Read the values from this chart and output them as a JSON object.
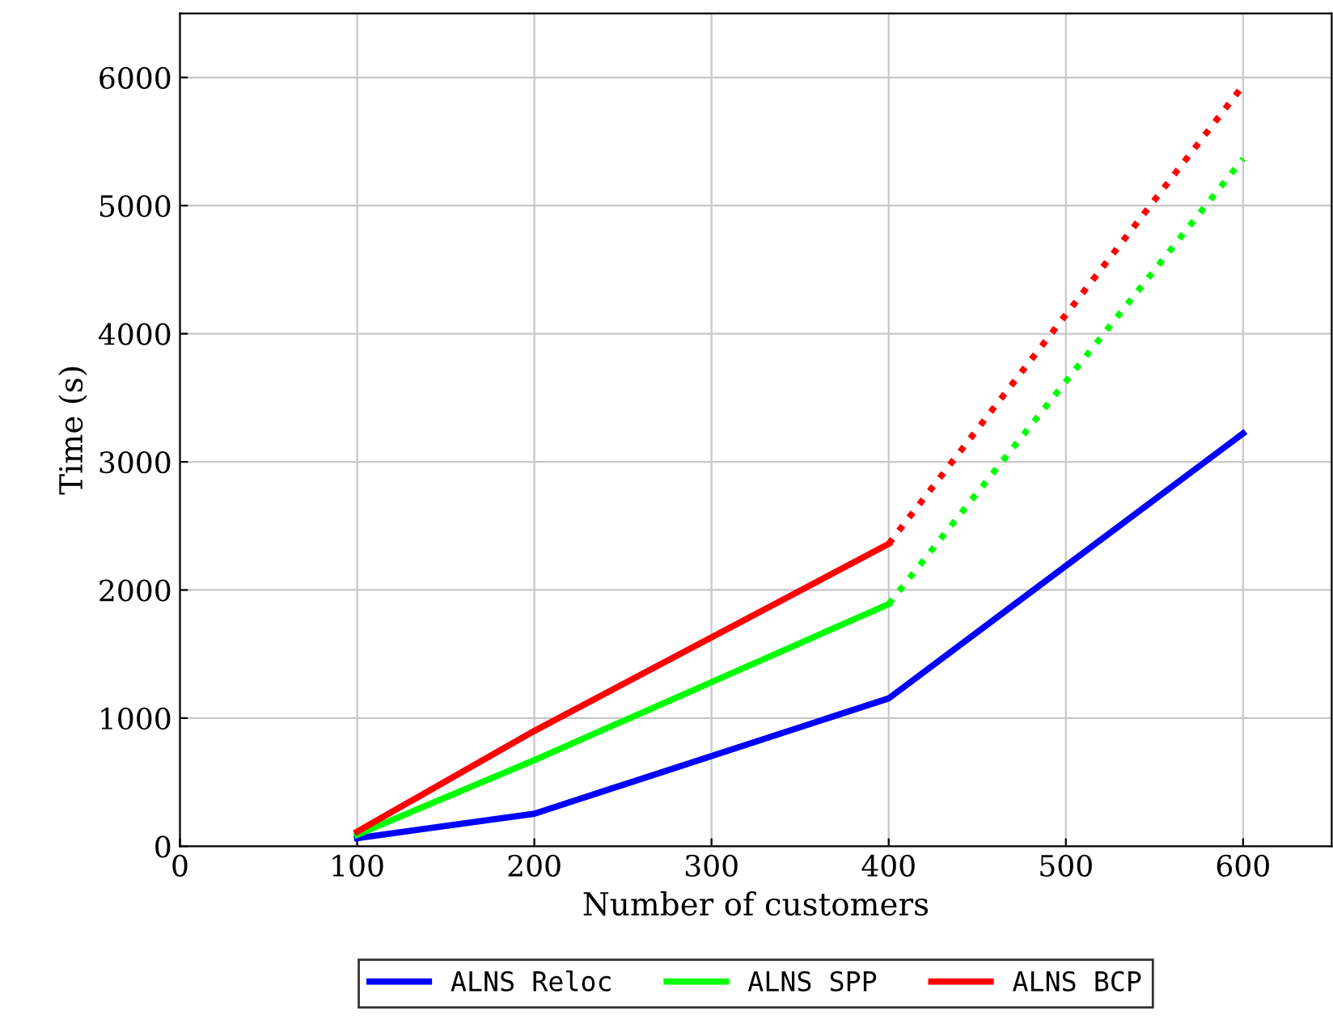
{
  "chart_data": {
    "type": "line",
    "xlabel": "Number of customers",
    "ylabel": "Time (s)",
    "xlim": [
      0,
      650
    ],
    "ylim": [
      0,
      6500
    ],
    "xticks": [
      0,
      100,
      200,
      300,
      400,
      500,
      600
    ],
    "yticks": [
      0,
      1000,
      2000,
      3000,
      4000,
      5000,
      6000
    ],
    "grid": true,
    "legend": "bottom",
    "marker": "none",
    "series": [
      {
        "name": "ALNS Reloc",
        "color": "#0000ff",
        "x": [
          100,
          200,
          400,
          600
        ],
        "values": [
          63,
          254,
          1154,
          3222
        ],
        "line_style": "solid"
      },
      {
        "name": "ALNS SPP",
        "color": "#00ff00",
        "x": [
          100,
          200,
          400
        ],
        "values": [
          90,
          672,
          1890
        ],
        "line_style": "solid"
      },
      {
        "name": "ALNS BCP",
        "color": "#ff0000",
        "x": [
          100,
          200,
          400
        ],
        "values": [
          114,
          900,
          2360
        ],
        "line_style": "solid"
      },
      {
        "color": "#00ff00",
        "x": [
          400,
          600
        ],
        "values": [
          1890,
          5366
        ],
        "line_style": "dotted"
      },
      {
        "color": "#ff0000",
        "x": [
          400,
          600
        ],
        "values": [
          2360,
          5937
        ],
        "line_style": "dotted"
      }
    ]
  }
}
